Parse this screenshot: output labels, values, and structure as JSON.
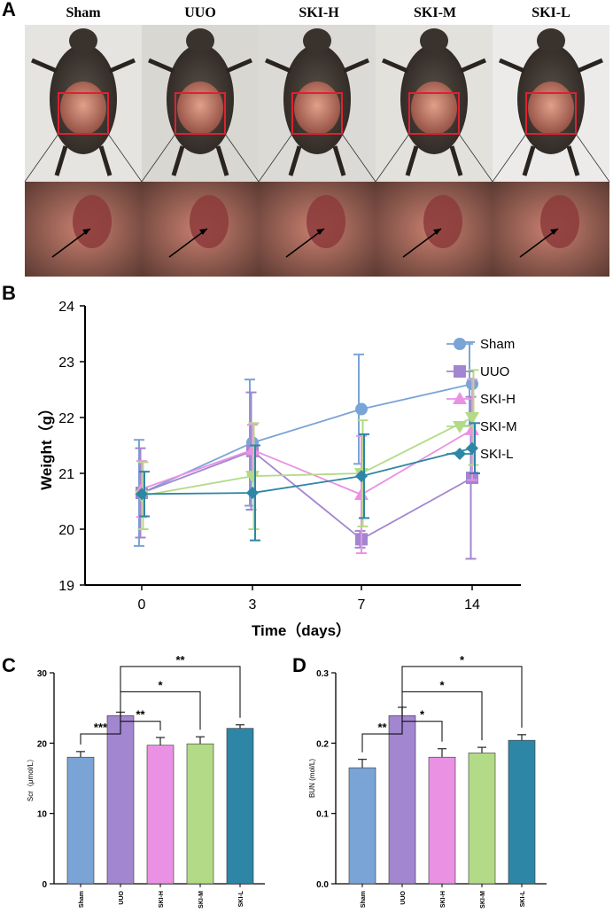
{
  "panels": {
    "A": "A",
    "B": "B",
    "C": "C",
    "D": "D"
  },
  "photo_panel": {
    "groups": [
      "Sham",
      "UUO",
      "SKI-H",
      "SKI-M",
      "SKI-L"
    ]
  },
  "colors": {
    "Sham": "#7aa4d6",
    "UUO": "#a286cf",
    "SKI-H": "#ea91e4",
    "SKI-M": "#b3da86",
    "SKI-L": "#2e86a6"
  },
  "chart_data": [
    {
      "id": "B",
      "type": "line",
      "xlabel": "Time（days）",
      "ylabel": "Weight（g）",
      "categories": [
        "0",
        "3",
        "7",
        "14"
      ],
      "ylim": [
        19,
        24
      ],
      "yticks": [
        19,
        20,
        21,
        22,
        23,
        24
      ],
      "legend_position": "right",
      "series": [
        {
          "name": "Sham",
          "marker": "circle",
          "color": "#7aa4d6",
          "values": [
            20.65,
            21.55,
            22.15,
            22.6
          ],
          "err": [
            0.95,
            1.13,
            0.98,
            0.75
          ]
        },
        {
          "name": "UUO",
          "marker": "square",
          "color": "#a286cf",
          "values": [
            20.65,
            21.4,
            19.82,
            20.92
          ],
          "err": [
            0.8,
            1.05,
            0.15,
            1.45
          ]
        },
        {
          "name": "SKI-H",
          "marker": "triangle-up",
          "color": "#ea91e4",
          "values": [
            20.72,
            21.42,
            20.62,
            21.78
          ],
          "err": [
            0.5,
            0.45,
            1.05,
            0.9
          ]
        },
        {
          "name": "SKI-M",
          "marker": "triangle-down",
          "color": "#b3da86",
          "values": [
            20.6,
            20.95,
            21.0,
            22.0
          ],
          "err": [
            0.6,
            0.95,
            0.95,
            0.85
          ]
        },
        {
          "name": "SKI-L",
          "marker": "diamond",
          "color": "#2e86a6",
          "values": [
            20.63,
            20.65,
            20.95,
            21.45
          ],
          "err": [
            0.4,
            0.85,
            0.75,
            0.45
          ]
        }
      ]
    },
    {
      "id": "C",
      "type": "bar",
      "ylabel": "Scr（μmol/L）",
      "categories": [
        "Sham",
        "UUO",
        "SKI-H",
        "SKI-M",
        "SKI-L"
      ],
      "values": [
        18.0,
        23.9,
        19.7,
        19.9,
        22.1
      ],
      "err": [
        0.8,
        0.5,
        1.1,
        1.0,
        0.5
      ],
      "ylim": [
        0,
        30
      ],
      "yticks": [
        0,
        10,
        20,
        30
      ],
      "significance": [
        {
          "from": 0,
          "to": 1,
          "label": "***"
        },
        {
          "from": 1,
          "to": 2,
          "label": "**"
        },
        {
          "from": 1,
          "to": 3,
          "label": "*"
        },
        {
          "from": 1,
          "to": 4,
          "label": "**"
        }
      ]
    },
    {
      "id": "D",
      "type": "bar",
      "ylabel": "BUN (mol/L)",
      "categories": [
        "Sham",
        "UUO",
        "SKI-H",
        "SKI-M",
        "SKI-L"
      ],
      "values": [
        0.165,
        0.239,
        0.18,
        0.186,
        0.204
      ],
      "err": [
        0.012,
        0.012,
        0.012,
        0.008,
        0.008
      ],
      "ylim": [
        0,
        0.3
      ],
      "yticks": [
        "0.0",
        "0.1",
        "0.2",
        "0.3"
      ],
      "significance": [
        {
          "from": 0,
          "to": 1,
          "label": "**"
        },
        {
          "from": 1,
          "to": 2,
          "label": "*"
        },
        {
          "from": 1,
          "to": 3,
          "label": "*"
        },
        {
          "from": 1,
          "to": 4,
          "label": "*"
        }
      ]
    }
  ]
}
